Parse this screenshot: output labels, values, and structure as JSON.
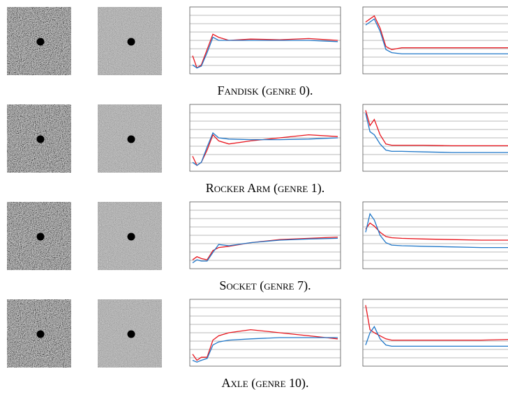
{
  "figure": {
    "rows": [
      {
        "caption": "Fandisk (genre 0).",
        "charts": [
          {
            "type": "line",
            "x": [
              0,
              3,
              6,
              10,
              14,
              18,
              25,
              40,
              60,
              80,
              100
            ],
            "xlim": [
              0,
              100
            ],
            "ylim": [
              0,
              1
            ],
            "series": [
              {
                "color": "#e8141c",
                "values": [
                  0.25,
                  0.05,
                  0.1,
                  0.35,
                  0.6,
                  0.55,
                  0.5,
                  0.52,
                  0.51,
                  0.53,
                  0.5
                ]
              },
              {
                "color": "#1f77c8",
                "values": [
                  0.1,
                  0.05,
                  0.08,
                  0.3,
                  0.55,
                  0.5,
                  0.5,
                  0.5,
                  0.5,
                  0.5,
                  0.48
                ]
              }
            ]
          },
          {
            "type": "line",
            "x": [
              0,
              3,
              6,
              10,
              14,
              18,
              25,
              40,
              60,
              80,
              100
            ],
            "xlim": [
              0,
              100
            ],
            "ylim": [
              0,
              1
            ],
            "series": [
              {
                "color": "#e8141c",
                "values": [
                  0.8,
                  0.85,
                  0.9,
                  0.7,
                  0.4,
                  0.35,
                  0.38,
                  0.38,
                  0.38,
                  0.38,
                  0.38
                ]
              },
              {
                "color": "#1f77c8",
                "values": [
                  0.75,
                  0.8,
                  0.85,
                  0.65,
                  0.35,
                  0.3,
                  0.28,
                  0.28,
                  0.28,
                  0.28,
                  0.28
                ]
              }
            ]
          }
        ]
      },
      {
        "caption": "Rocker Arm (genre 1).",
        "charts": [
          {
            "type": "line",
            "x": [
              0,
              3,
              6,
              10,
              14,
              18,
              25,
              40,
              60,
              80,
              100
            ],
            "xlim": [
              0,
              100
            ],
            "ylim": [
              0,
              1
            ],
            "series": [
              {
                "color": "#e8141c",
                "values": [
                  0.2,
                  0.05,
                  0.1,
                  0.3,
                  0.55,
                  0.45,
                  0.4,
                  0.45,
                  0.5,
                  0.55,
                  0.52
                ]
              },
              {
                "color": "#1f77c8",
                "values": [
                  0.1,
                  0.05,
                  0.1,
                  0.35,
                  0.58,
                  0.5,
                  0.48,
                  0.47,
                  0.47,
                  0.48,
                  0.5
                ]
              }
            ]
          },
          {
            "type": "line",
            "x": [
              0,
              3,
              6,
              10,
              14,
              18,
              25,
              40,
              60,
              80,
              100
            ],
            "xlim": [
              0,
              100
            ],
            "ylim": [
              0,
              1
            ],
            "series": [
              {
                "color": "#e8141c",
                "values": [
                  0.95,
                  0.7,
                  0.8,
                  0.55,
                  0.4,
                  0.38,
                  0.38,
                  0.38,
                  0.37,
                  0.37,
                  0.37
                ]
              },
              {
                "color": "#1f77c8",
                "values": [
                  0.9,
                  0.6,
                  0.55,
                  0.4,
                  0.3,
                  0.28,
                  0.28,
                  0.27,
                  0.26,
                  0.26,
                  0.26
                ]
              }
            ]
          }
        ]
      },
      {
        "caption": "Socket (genre 7).",
        "charts": [
          {
            "type": "line",
            "x": [
              0,
              3,
              6,
              10,
              14,
              18,
              25,
              40,
              60,
              80,
              100
            ],
            "xlim": [
              0,
              100
            ],
            "ylim": [
              0,
              1
            ],
            "series": [
              {
                "color": "#e8141c",
                "values": [
                  0.1,
                  0.15,
                  0.12,
                  0.1,
                  0.25,
                  0.3,
                  0.32,
                  0.38,
                  0.43,
                  0.45,
                  0.47
                ]
              },
              {
                "color": "#1f77c8",
                "values": [
                  0.05,
                  0.1,
                  0.08,
                  0.08,
                  0.22,
                  0.35,
                  0.33,
                  0.38,
                  0.42,
                  0.44,
                  0.45
                ]
              }
            ]
          },
          {
            "type": "line",
            "x": [
              0,
              3,
              6,
              10,
              14,
              18,
              25,
              40,
              60,
              80,
              100
            ],
            "xlim": [
              0,
              100
            ],
            "ylim": [
              0,
              1
            ],
            "series": [
              {
                "color": "#e8141c",
                "values": [
                  0.6,
                  0.7,
                  0.65,
                  0.55,
                  0.48,
                  0.46,
                  0.45,
                  0.44,
                  0.43,
                  0.42,
                  0.42
                ]
              },
              {
                "color": "#1f77c8",
                "values": [
                  0.55,
                  0.85,
                  0.75,
                  0.5,
                  0.38,
                  0.34,
                  0.33,
                  0.32,
                  0.31,
                  0.3,
                  0.3
                ]
              }
            ]
          }
        ]
      },
      {
        "caption": "Axle (genre 10).",
        "charts": [
          {
            "type": "line",
            "x": [
              0,
              3,
              6,
              10,
              14,
              18,
              25,
              40,
              60,
              80,
              100
            ],
            "xlim": [
              0,
              100
            ],
            "ylim": [
              0,
              1
            ],
            "series": [
              {
                "color": "#e8141c",
                "values": [
                  0.15,
                  0.05,
                  0.1,
                  0.1,
                  0.38,
                  0.45,
                  0.5,
                  0.55,
                  0.5,
                  0.45,
                  0.4
                ]
              },
              {
                "color": "#1f77c8",
                "values": [
                  0.05,
                  0.02,
                  0.05,
                  0.08,
                  0.3,
                  0.35,
                  0.38,
                  0.4,
                  0.42,
                  0.42,
                  0.42
                ]
              }
            ]
          },
          {
            "type": "line",
            "x": [
              0,
              3,
              6,
              10,
              14,
              18,
              25,
              40,
              60,
              80,
              100
            ],
            "xlim": [
              0,
              100
            ],
            "ylim": [
              0,
              1
            ],
            "series": [
              {
                "color": "#e8141c",
                "values": [
                  0.95,
                  0.55,
                  0.5,
                  0.45,
                  0.4,
                  0.38,
                  0.38,
                  0.38,
                  0.38,
                  0.38,
                  0.39
                ]
              },
              {
                "color": "#1f77c8",
                "values": [
                  0.3,
                  0.5,
                  0.6,
                  0.4,
                  0.3,
                  0.28,
                  0.28,
                  0.28,
                  0.28,
                  0.28,
                  0.28
                ]
              }
            ]
          }
        ]
      }
    ]
  }
}
